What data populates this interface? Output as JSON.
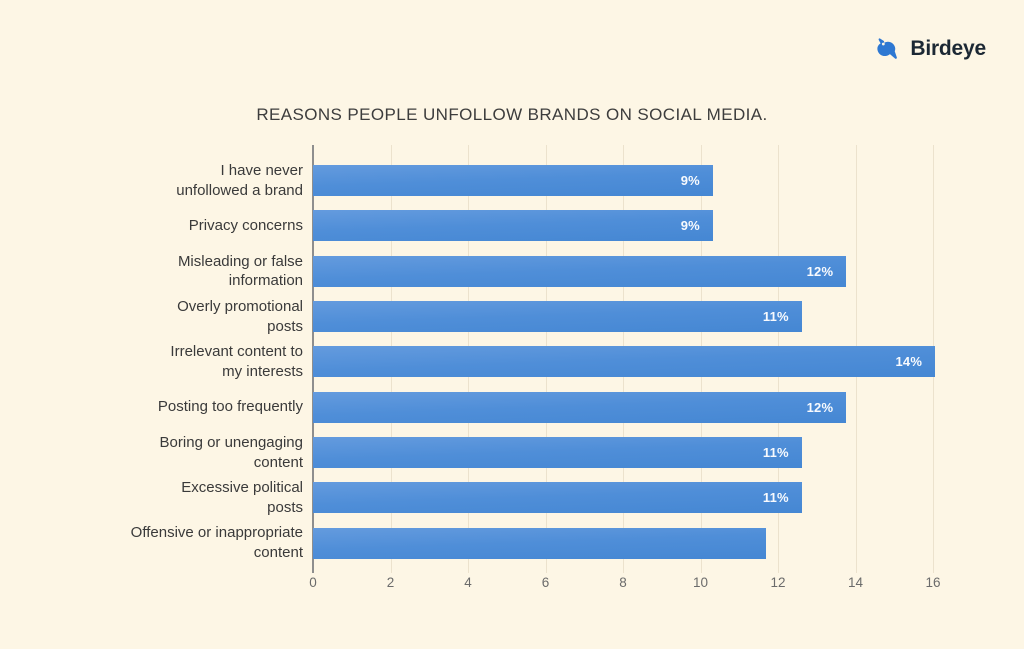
{
  "page": {
    "background": "#fdf6e5"
  },
  "brand": {
    "name": "Birdeye",
    "icon": "bird-icon",
    "icon_color": "#2e78d2",
    "text_color": "#1c2834"
  },
  "chart_data": {
    "type": "bar",
    "orientation": "horizontal",
    "title": "REASONS PEOPLE UNFOLLOW BRANDS ON SOCIAL MEDIA.",
    "categories": [
      "I have never\nunfollowed a brand",
      "Privacy concerns",
      "Misleading or false\ninformation",
      "Overly promotional\nposts",
      "Irrelevant content to\nmy interests",
      "Posting too frequently",
      "Boring or unengaging\ncontent",
      "Excessive political\nposts",
      "Offensive or inappropriate\ncontent"
    ],
    "values": [
      9,
      9,
      12,
      11,
      14,
      12,
      11,
      11,
      10.2
    ],
    "bar_labels": [
      "9%",
      "9%",
      "12%",
      "11%",
      "14%",
      "12%",
      "11%",
      "11%",
      ""
    ],
    "x_ticks": [
      "0",
      "2",
      "4",
      "6",
      "8",
      "10",
      "12",
      "14",
      "16"
    ],
    "xlim": [
      0,
      16
    ],
    "xlabel": "",
    "ylabel": "",
    "grid": "vertical-light",
    "legend": false,
    "bar_color": "#4f8ed8",
    "value_label_color": "#ffffff"
  }
}
